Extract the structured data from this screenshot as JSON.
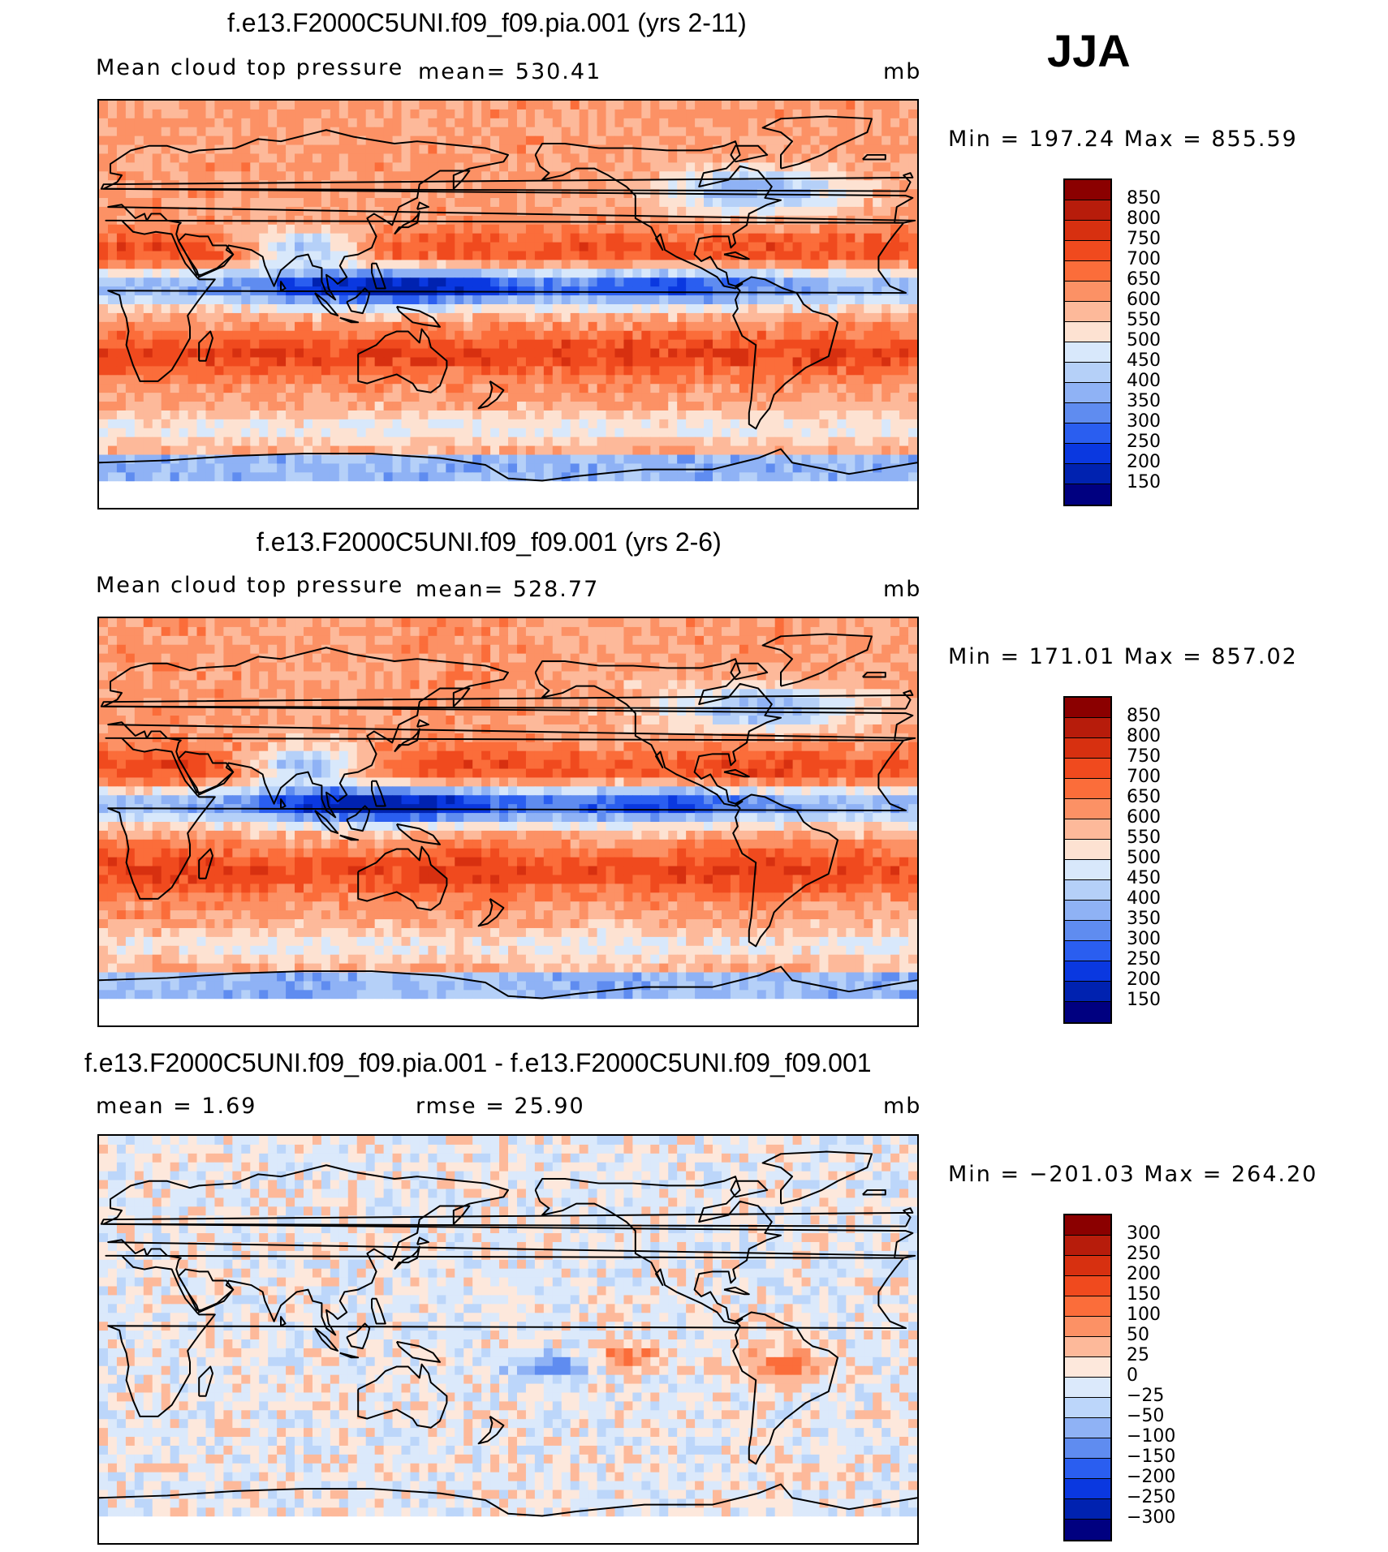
{
  "season": "JJA",
  "panels": [
    {
      "title": "f.e13.F2000C5UNI.f09_f09.pia.001 (yrs 2-11)",
      "variable": "Mean cloud top pressure",
      "stat": "mean=  530.41",
      "units": "mb",
      "minmax": "Min  =  197.24  Max  =  855.59",
      "colorbar": {
        "labels": [
          "850",
          "800",
          "750",
          "700",
          "650",
          "600",
          "550",
          "500",
          "450",
          "400",
          "350",
          "300",
          "250",
          "200",
          "150"
        ],
        "colors": [
          "#8b0000",
          "#b71c0b",
          "#d73010",
          "#f04a1e",
          "#fb6d3a",
          "#fc9165",
          "#fdb99a",
          "#fde2d2",
          "#d8e8fb",
          "#b5d0f8",
          "#8fb2f5",
          "#5f8cf0",
          "#2a5ef0",
          "#0a38e0",
          "#0022b0",
          "#000080"
        ]
      },
      "map": {
        "type": "mean_field",
        "scheme": "warm",
        "shift": 0
      }
    },
    {
      "title": "f.e13.F2000C5UNI.f09_f09.001 (yrs 2-6)",
      "variable": "Mean cloud top pressure",
      "stat": "mean=  528.77",
      "units": "mb",
      "minmax": "Min  =  171.01  Max  =  857.02",
      "colorbar": {
        "labels": [
          "850",
          "800",
          "750",
          "700",
          "650",
          "600",
          "550",
          "500",
          "450",
          "400",
          "350",
          "300",
          "250",
          "200",
          "150"
        ],
        "colors": [
          "#8b0000",
          "#b71c0b",
          "#d73010",
          "#f04a1e",
          "#fb6d3a",
          "#fc9165",
          "#fdb99a",
          "#fde2d2",
          "#d8e8fb",
          "#b5d0f8",
          "#8fb2f5",
          "#5f8cf0",
          "#2a5ef0",
          "#0a38e0",
          "#0022b0",
          "#000080"
        ]
      },
      "map": {
        "type": "mean_field",
        "scheme": "warm",
        "shift": 1
      }
    },
    {
      "title": "f.e13.F2000C5UNI.f09_f09.pia.001 - f.e13.F2000C5UNI.f09_f09.001",
      "variable": "mean  =     1.69",
      "stat": "rmse  =    25.90",
      "units": "mb",
      "minmax": "Min  =  −201.03  Max  =  264.20",
      "colorbar": {
        "labels": [
          "300",
          "250",
          "200",
          "150",
          "100",
          "50",
          "25",
          "0",
          "−25",
          "−50",
          "−100",
          "−150",
          "−200",
          "−250",
          "−300"
        ],
        "colors": [
          "#8b0000",
          "#b71c0b",
          "#d73010",
          "#f04a1e",
          "#fb6d3a",
          "#fc9165",
          "#fdb99a",
          "#fde8dc",
          "#dbe9fb",
          "#bcd6fa",
          "#8fb2f5",
          "#5f8cf0",
          "#2a5ef0",
          "#0a38e0",
          "#0022b0",
          "#000080"
        ]
      },
      "map": {
        "type": "difference_field",
        "scheme": "diff",
        "shift": 2
      }
    }
  ]
}
